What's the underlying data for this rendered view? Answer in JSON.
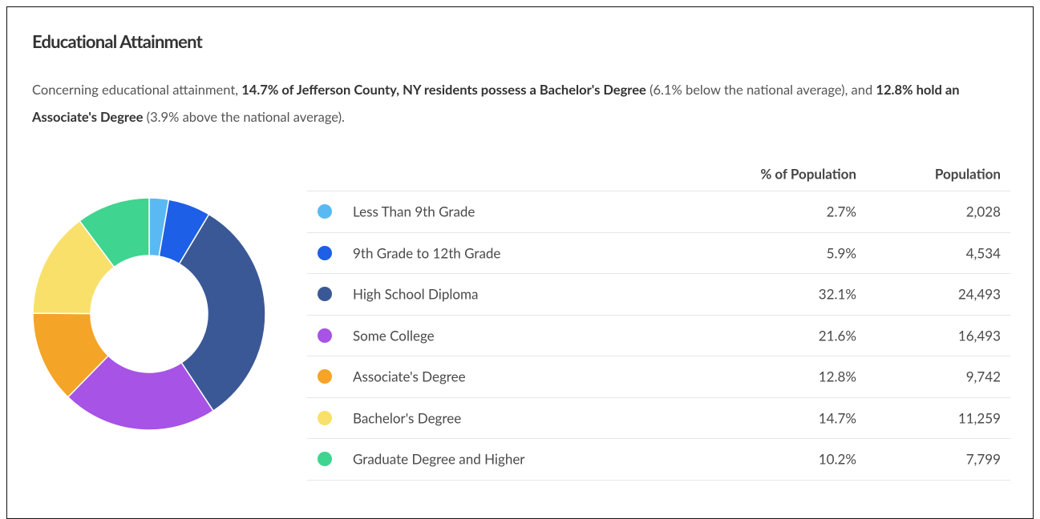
{
  "title": "Educational Attainment",
  "description": [
    {
      "text": "Concerning educational attainment, ",
      "bold": false
    },
    {
      "text": "14.7% of Jefferson County, NY residents possess a Bachelor's Degree",
      "bold": true
    },
    {
      "text": " (6.1% below the national average), and ",
      "bold": false
    },
    {
      "text": "12.8% hold an Associate's Degree",
      "bold": true
    },
    {
      "text": " (3.9% above the national average).",
      "bold": false
    }
  ],
  "chart_data": {
    "type": "donut",
    "categories": [
      "Less Than 9th Grade",
      "9th Grade to 12th Grade",
      "High School Diploma",
      "Some College",
      "Associate's Degree",
      "Bachelor's Degree",
      "Graduate Degree and Higher"
    ],
    "values": [
      2.7,
      5.9,
      32.1,
      21.6,
      12.8,
      14.7,
      10.2
    ],
    "value_labels": [
      "2.7%",
      "5.9%",
      "32.1%",
      "21.6%",
      "12.8%",
      "14.7%",
      "10.2%"
    ],
    "colors": [
      "#5ab9f2",
      "#1d5fe6",
      "#3b5896",
      "#a653e6",
      "#f4a426",
      "#f8e06b",
      "#3fd48f"
    ]
  },
  "table": {
    "headers": [
      "% of Population",
      "Population"
    ],
    "population": [
      "2,028",
      "4,534",
      "24,493",
      "16,493",
      "9,742",
      "11,259",
      "7,799"
    ]
  }
}
